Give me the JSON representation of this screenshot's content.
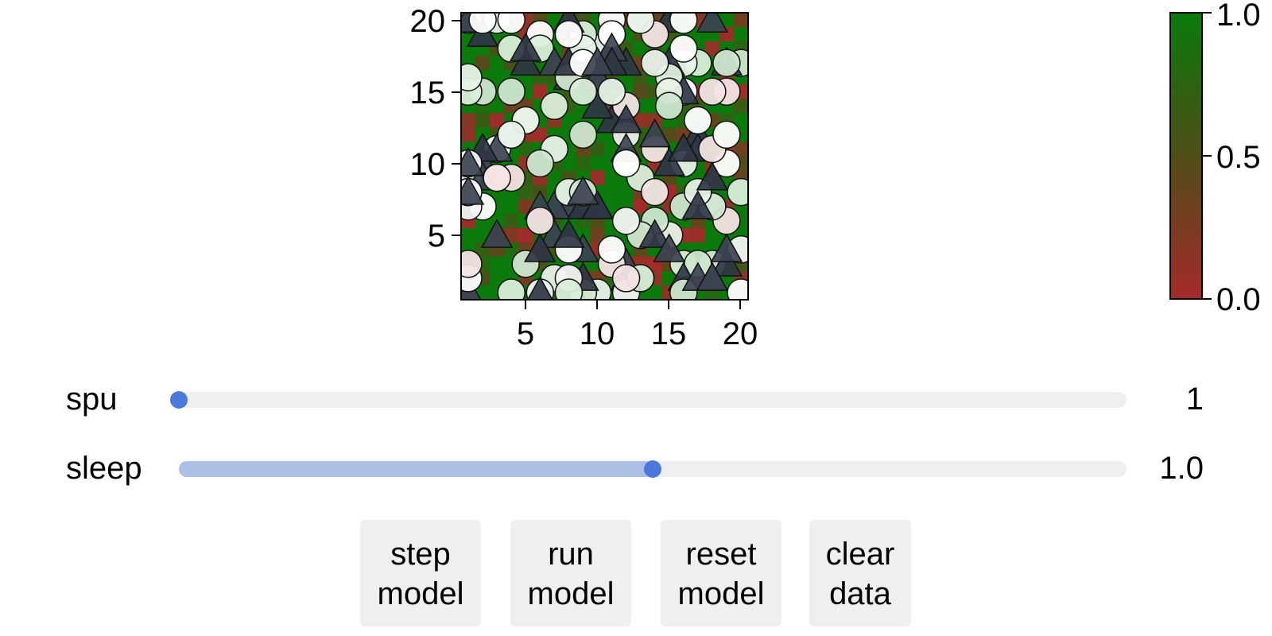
{
  "heatmap": {
    "x_ticks": [
      "5",
      "10",
      "15",
      "20"
    ],
    "y_ticks": [
      "20",
      "15",
      "10",
      "5"
    ],
    "colorbar_ticks": [
      "1.0",
      "0.5",
      "0.0"
    ],
    "colors": {
      "high": "#0a7a0a",
      "mid": "#4f4d18",
      "low": "#a62a2a"
    },
    "markers": "circles-and-triangles"
  },
  "sliders": [
    {
      "label": "spu",
      "value": "1",
      "fraction": 0.0
    },
    {
      "label": "sleep",
      "value": "1.0",
      "fraction": 0.5
    }
  ],
  "buttons": {
    "step": "step\nmodel",
    "run": "run\nmodel",
    "reset": "reset\nmodel",
    "clear": "clear\ndata"
  }
}
